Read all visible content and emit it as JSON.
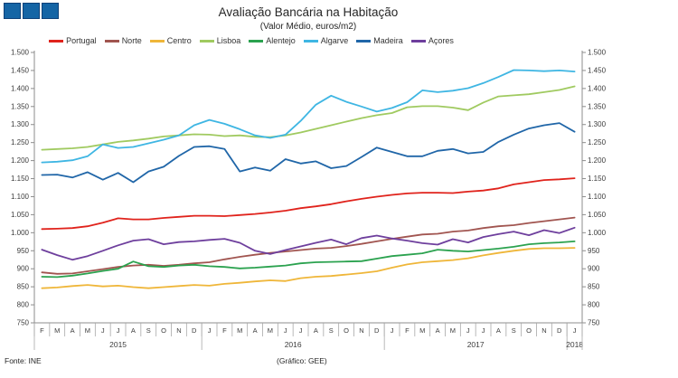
{
  "title": "Avaliação Bancária na Habitação",
  "subtitle": "(Valor Médio, euros/m2)",
  "footer": {
    "source": "Fonte: INE",
    "credit": "(Gráfico: GEE)"
  },
  "logo": {
    "square_count": 3,
    "color": "#1565a5"
  },
  "chart_data": {
    "type": "line",
    "title": "Avaliação Bancária na Habitação",
    "subtitle": "(Valor Médio, euros/m2)",
    "ylabel": "euros/m2",
    "legend_position": "top",
    "grid": false,
    "y_axis": {
      "min": 750,
      "max": 1500,
      "step": 50,
      "mirrored_right": true
    },
    "x_axis": {
      "month_labels": [
        "F",
        "M",
        "A",
        "M",
        "J",
        "J",
        "A",
        "S",
        "O",
        "N",
        "D",
        "J",
        "F",
        "M",
        "A",
        "M",
        "J",
        "J",
        "A",
        "S",
        "O",
        "N",
        "D",
        "J",
        "F",
        "M",
        "A",
        "M",
        "J",
        "J",
        "A",
        "S",
        "O",
        "N",
        "D",
        "J"
      ],
      "year_groups": [
        {
          "label": "2015",
          "months": 11
        },
        {
          "label": "2016",
          "months": 12
        },
        {
          "label": "2017",
          "months": 12
        },
        {
          "label": "2018",
          "months": 1
        }
      ]
    },
    "series": [
      {
        "name": "Portugal",
        "color": "#e0231c",
        "values": [
          1010,
          1011,
          1013,
          1018,
          1028,
          1040,
          1037,
          1037,
          1041,
          1044,
          1047,
          1047,
          1046,
          1049,
          1052,
          1056,
          1061,
          1068,
          1073,
          1079,
          1087,
          1094,
          1100,
          1105,
          1109,
          1111,
          1111,
          1110,
          1114,
          1117,
          1123,
          1134,
          1140,
          1146,
          1148,
          1151
        ]
      },
      {
        "name": "Norte",
        "color": "#a15550",
        "values": [
          890,
          886,
          887,
          893,
          899,
          905,
          909,
          911,
          908,
          911,
          915,
          918,
          926,
          933,
          939,
          944,
          948,
          952,
          956,
          958,
          963,
          969,
          976,
          983,
          989,
          995,
          997,
          1003,
          1006,
          1013,
          1018,
          1021,
          1027,
          1032,
          1037,
          1042
        ]
      },
      {
        "name": "Centro",
        "color": "#efb639",
        "values": [
          846,
          848,
          852,
          855,
          851,
          853,
          849,
          846,
          849,
          852,
          855,
          853,
          858,
          861,
          865,
          868,
          866,
          874,
          878,
          880,
          884,
          888,
          893,
          903,
          912,
          918,
          921,
          924,
          929,
          937,
          944,
          950,
          955,
          957,
          957,
          958
        ]
      },
      {
        "name": "Lisboa",
        "color": "#a0ca60",
        "values": [
          1230,
          1232,
          1234,
          1238,
          1245,
          1252,
          1256,
          1261,
          1267,
          1270,
          1273,
          1272,
          1268,
          1270,
          1266,
          1265,
          1270,
          1278,
          1288,
          1298,
          1308,
          1318,
          1326,
          1332,
          1348,
          1351,
          1351,
          1347,
          1340,
          1361,
          1378,
          1381,
          1384,
          1390,
          1396,
          1406
        ]
      },
      {
        "name": "Alentejo",
        "color": "#2ba24f",
        "values": [
          878,
          877,
          881,
          887,
          894,
          900,
          920,
          907,
          905,
          909,
          911,
          907,
          905,
          901,
          903,
          906,
          909,
          915,
          918,
          919,
          920,
          921,
          928,
          935,
          939,
          943,
          953,
          950,
          948,
          952,
          956,
          961,
          968,
          971,
          973,
          976
        ]
      },
      {
        "name": "Algarve",
        "color": "#3fb6e3",
        "values": [
          1195,
          1197,
          1201,
          1212,
          1245,
          1235,
          1238,
          1248,
          1258,
          1270,
          1298,
          1313,
          1302,
          1287,
          1270,
          1263,
          1272,
          1310,
          1355,
          1380,
          1363,
          1350,
          1336,
          1346,
          1362,
          1395,
          1390,
          1394,
          1401,
          1415,
          1432,
          1451,
          1450,
          1448,
          1450,
          1447
        ]
      },
      {
        "name": "Madeira",
        "color": "#2066a8",
        "values": [
          1160,
          1161,
          1153,
          1168,
          1147,
          1166,
          1140,
          1170,
          1183,
          1213,
          1238,
          1240,
          1232,
          1170,
          1181,
          1172,
          1204,
          1192,
          1198,
          1179,
          1185,
          1210,
          1236,
          1224,
          1212,
          1212,
          1227,
          1232,
          1220,
          1224,
          1252,
          1272,
          1289,
          1298,
          1304,
          1280
        ]
      },
      {
        "name": "Açores",
        "color": "#6e3f9d",
        "values": [
          953,
          938,
          925,
          935,
          950,
          965,
          978,
          982,
          968,
          974,
          976,
          980,
          983,
          972,
          950,
          941,
          952,
          962,
          972,
          981,
          968,
          985,
          992,
          984,
          978,
          971,
          967,
          982,
          973,
          988,
          996,
          1003,
          993,
          1007,
          999,
          1014
        ]
      }
    ]
  }
}
